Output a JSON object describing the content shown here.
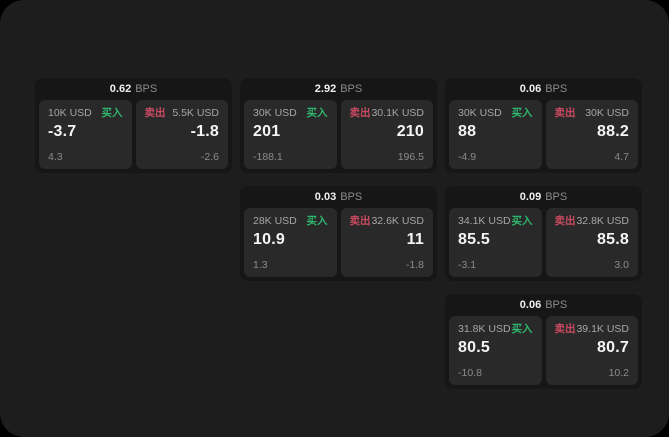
{
  "labels": {
    "bps_unit": "BPS",
    "buy": "买入",
    "sell": "卖出"
  },
  "colors": {
    "buy": "#2fb56d",
    "sell": "#c94a60",
    "page_bg": "#1d1d1e",
    "card_bg": "#161617",
    "panel_bg": "#29292a"
  },
  "cards": [
    {
      "bps": "0.62",
      "col": 1,
      "row": 1,
      "buy": {
        "amount": "10K USD",
        "value": "-3.7",
        "sub": "4.3"
      },
      "sell": {
        "amount": "5.5K USD",
        "value": "-1.8",
        "sub": "-2.6"
      }
    },
    {
      "bps": "2.92",
      "col": 2,
      "row": 1,
      "buy": {
        "amount": "30K USD",
        "value": "201",
        "sub": "-188.1"
      },
      "sell": {
        "amount": "30.1K USD",
        "value": "210",
        "sub": "196.5"
      }
    },
    {
      "bps": "0.06",
      "col": 3,
      "row": 1,
      "buy": {
        "amount": "30K USD",
        "value": "88",
        "sub": "-4.9"
      },
      "sell": {
        "amount": "30K USD",
        "value": "88.2",
        "sub": "4.7"
      }
    },
    {
      "bps": "0.03",
      "col": 2,
      "row": 2,
      "buy": {
        "amount": "28K USD",
        "value": "10.9",
        "sub": "1.3"
      },
      "sell": {
        "amount": "32.6K USD",
        "value": "11",
        "sub": "-1.8"
      }
    },
    {
      "bps": "0.09",
      "col": 3,
      "row": 2,
      "buy": {
        "amount": "34.1K USD",
        "value": "85.5",
        "sub": "-3.1"
      },
      "sell": {
        "amount": "32.8K USD",
        "value": "85.8",
        "sub": "3.0"
      }
    },
    {
      "bps": "0.06",
      "col": 3,
      "row": 3,
      "buy": {
        "amount": "31.8K USD",
        "value": "80.5",
        "sub": "-10.8"
      },
      "sell": {
        "amount": "39.1K USD",
        "value": "80.7",
        "sub": "10.2"
      }
    }
  ]
}
